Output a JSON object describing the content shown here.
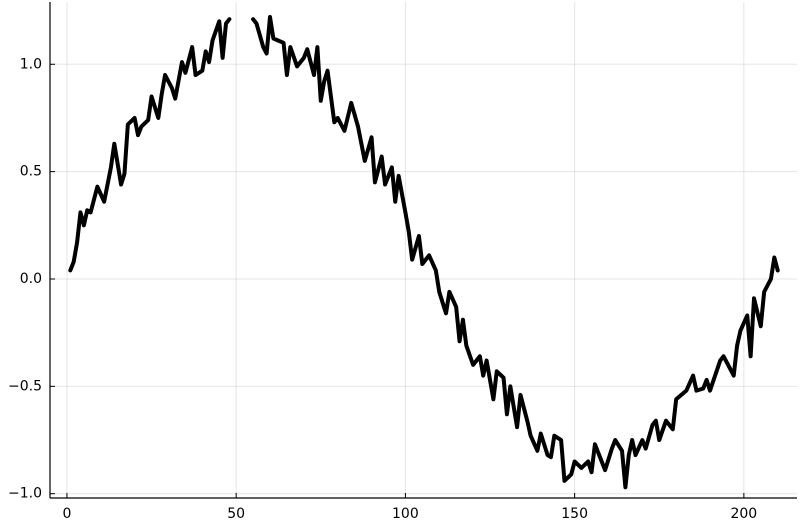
{
  "chart_data": {
    "type": "line",
    "x": [
      1,
      2,
      3,
      4,
      5,
      6,
      7,
      8,
      9,
      11,
      13,
      14,
      16,
      17,
      18,
      20,
      21,
      22,
      24,
      25,
      27,
      28,
      29,
      31,
      32,
      34,
      35,
      37,
      38,
      40,
      41,
      42,
      43,
      45,
      46,
      47,
      48,
      51,
      55,
      56,
      58,
      59,
      60,
      61,
      64,
      65,
      66,
      68,
      70,
      71,
      73,
      74,
      75,
      76,
      77,
      79,
      80,
      82,
      84,
      86,
      88,
      90,
      91,
      93,
      94,
      96,
      97,
      98,
      100,
      101,
      102,
      104,
      105,
      107,
      109,
      110,
      112,
      113,
      115,
      116,
      117,
      118,
      120,
      122,
      123,
      124,
      126,
      127,
      129,
      130,
      131,
      133,
      134,
      136,
      137,
      139,
      140,
      142,
      143,
      144,
      146,
      147,
      149,
      150,
      152,
      154,
      155,
      156,
      158,
      159,
      161,
      162,
      164,
      165,
      166,
      167,
      168,
      170,
      171,
      173,
      174,
      175,
      177,
      179,
      180,
      183,
      185,
      186,
      188,
      189,
      190,
      193,
      194,
      195,
      197,
      198,
      199,
      201,
      202,
      203,
      205,
      206,
      208,
      209,
      210
    ],
    "values": [
      0.04,
      0.08,
      0.17,
      0.31,
      0.25,
      0.32,
      0.31,
      0.37,
      0.43,
      0.36,
      0.52,
      0.63,
      0.44,
      0.49,
      0.72,
      0.75,
      0.67,
      0.71,
      0.74,
      0.85,
      0.75,
      0.86,
      0.95,
      0.89,
      0.84,
      1.01,
      0.96,
      1.08,
      0.95,
      0.97,
      1.06,
      1.01,
      1.11,
      1.2,
      1.03,
      1.19,
      1.21,
      null,
      1.21,
      1.19,
      1.08,
      1.05,
      1.22,
      1.12,
      1.1,
      0.95,
      1.08,
      0.99,
      1.03,
      1.07,
      0.95,
      1.08,
      0.83,
      0.92,
      0.97,
      0.73,
      0.75,
      0.69,
      0.82,
      0.71,
      0.55,
      0.66,
      0.45,
      0.57,
      0.44,
      0.52,
      0.36,
      0.48,
      0.31,
      0.22,
      0.09,
      0.2,
      0.07,
      0.11,
      0.04,
      -0.06,
      -0.16,
      -0.06,
      -0.13,
      -0.29,
      -0.19,
      -0.31,
      -0.4,
      -0.36,
      -0.45,
      -0.38,
      -0.56,
      -0.43,
      -0.46,
      -0.63,
      -0.5,
      -0.69,
      -0.54,
      -0.66,
      -0.73,
      -0.8,
      -0.72,
      -0.82,
      -0.83,
      -0.73,
      -0.75,
      -0.94,
      -0.91,
      -0.85,
      -0.88,
      -0.85,
      -0.9,
      -0.77,
      -0.85,
      -0.89,
      -0.79,
      -0.75,
      -0.8,
      -0.97,
      -0.82,
      -0.75,
      -0.82,
      -0.75,
      -0.79,
      -0.68,
      -0.66,
      -0.75,
      -0.66,
      -0.7,
      -0.56,
      -0.52,
      -0.45,
      -0.52,
      -0.51,
      -0.47,
      -0.52,
      -0.38,
      -0.36,
      -0.39,
      -0.45,
      -0.31,
      -0.24,
      -0.17,
      -0.36,
      -0.09,
      -0.22,
      -0.06,
      0.0,
      0.1,
      0.04
    ],
    "color": "#000000",
    "xlim": [
      -5,
      215.7
    ],
    "ylim": [
      -1.02,
      1.29
    ],
    "xticks": [
      0,
      50,
      100,
      150,
      200
    ],
    "yticks": [
      {
        "value": -1,
        "label": "−1.0"
      },
      {
        "value": -0.5,
        "label": "−0.5"
      },
      {
        "value": 0,
        "label": "0.0"
      },
      {
        "value": 0.5,
        "label": "0.5"
      },
      {
        "value": 1,
        "label": "1.0"
      }
    ],
    "grid": true
  }
}
